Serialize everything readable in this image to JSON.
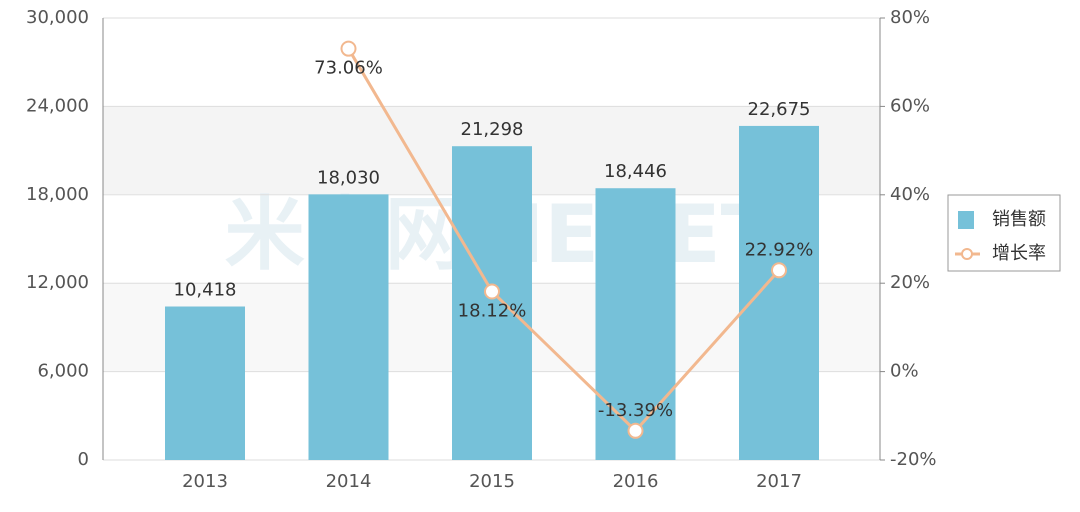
{
  "chart_data": {
    "type": "bar",
    "watermark": "米内网MENET",
    "categories": [
      "2013",
      "2014",
      "2015",
      "2016",
      "2017"
    ],
    "series": [
      {
        "name": "销售额",
        "type": "bar",
        "color": "#76c1d9",
        "values": [
          10418,
          18030,
          21298,
          18446,
          22675
        ],
        "value_labels": [
          "10,418",
          "18,030",
          "21,298",
          "18,446",
          "22,675"
        ]
      },
      {
        "name": "增长率",
        "type": "line",
        "axis": "y2",
        "color": "#f2b88f",
        "values": [
          null,
          73.06,
          18.12,
          -13.39,
          22.92
        ],
        "value_labels": [
          null,
          "73.06%",
          "18.12%",
          "-13.39%",
          "22.92%"
        ]
      }
    ],
    "ylim": [
      0,
      30000
    ],
    "yticks": [
      0,
      {
        "value": 6000,
        "label": "6,000"
      },
      {
        "value": 12000,
        "label": "12,000"
      },
      {
        "value": 18000,
        "label": "18,000"
      },
      {
        "value": 24000,
        "label": "24,000"
      },
      {
        "value": 30000,
        "label": "30,000"
      }
    ],
    "y2lim": [
      -20,
      80
    ],
    "y2ticks": [
      {
        "value": -20,
        "label": "-20%"
      },
      {
        "value": 0,
        "label": "0%"
      },
      {
        "value": 20,
        "label": "20%"
      },
      {
        "value": 40,
        "label": "40%"
      },
      {
        "value": 60,
        "label": "60%"
      },
      {
        "value": 80,
        "label": "80%"
      }
    ],
    "grid": true,
    "legend": "right"
  }
}
